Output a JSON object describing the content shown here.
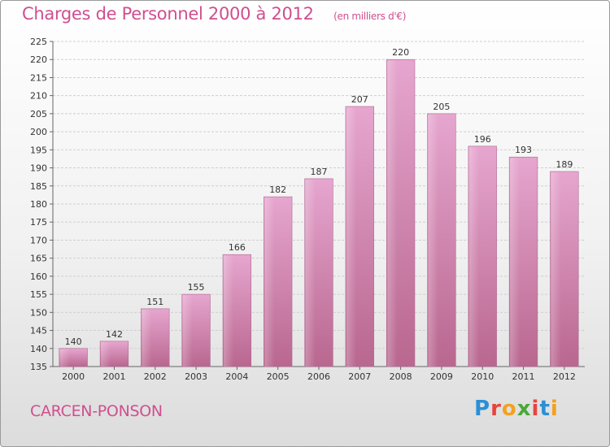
{
  "header": {
    "title": "Charges de Personnel 2000 à 2012",
    "unit": "(en milliers d'€)"
  },
  "footer": {
    "commune": "CARCEN-PONSON",
    "logo": {
      "letters": [
        "P",
        "r",
        "o",
        "x",
        "i",
        "t",
        "i"
      ],
      "colors": [
        "#2a8fd6",
        "#e8433f",
        "#f2a11f",
        "#49a83a",
        "#e8433f",
        "#2a8fd6",
        "#f2a11f"
      ]
    }
  },
  "chart_data": {
    "type": "bar",
    "title": "Charges de Personnel 2000 à 2012",
    "subtitle": "(en milliers d'€)",
    "xlabel": "",
    "ylabel": "",
    "categories": [
      "2000",
      "2001",
      "2002",
      "2003",
      "2004",
      "2005",
      "2006",
      "2007",
      "2008",
      "2009",
      "2010",
      "2011",
      "2012"
    ],
    "values": [
      140,
      142,
      151,
      155,
      166,
      182,
      187,
      207,
      220,
      205,
      196,
      193,
      189
    ],
    "ylim": [
      135,
      225
    ],
    "yticks": [
      135,
      140,
      145,
      150,
      155,
      160,
      165,
      170,
      175,
      180,
      185,
      190,
      195,
      200,
      205,
      210,
      215,
      220,
      225
    ],
    "grid": "horizontal",
    "bar_color_top": "#e6a6cf",
    "bar_color_bottom": "#b9678f"
  }
}
